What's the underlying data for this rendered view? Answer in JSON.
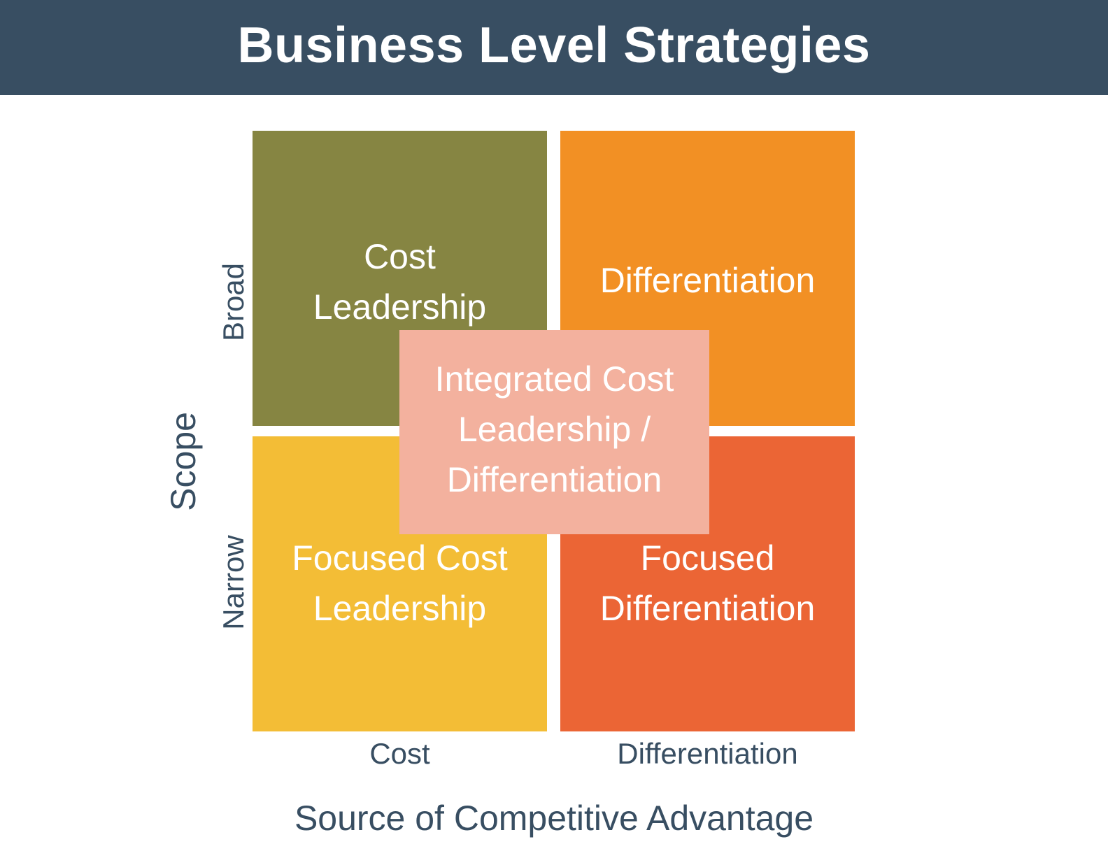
{
  "title": "Business Level Strategies",
  "quadrants": {
    "top_left": {
      "label": "Cost\nLeadership",
      "color": "#868542"
    },
    "top_right": {
      "label": "Differentiation",
      "color": "#f29024"
    },
    "bottom_left": {
      "label": "Focused Cost\nLeadership",
      "color": "#f3bd36"
    },
    "bottom_right": {
      "label": "Focused\nDifferentiation",
      "color": "#eb6535"
    },
    "center": {
      "label": "Integrated Cost\nLeadership /\nDifferentiation",
      "color": "#f3b19e"
    }
  },
  "axes": {
    "x_title": "Source of Competitive Advantage",
    "x_ticks": [
      "Cost",
      "Differentiation"
    ],
    "y_title": "Scope",
    "y_ticks": [
      "Broad",
      "Narrow"
    ]
  },
  "colors": {
    "header_bg": "#384e62",
    "axis_text": "#384e62"
  }
}
